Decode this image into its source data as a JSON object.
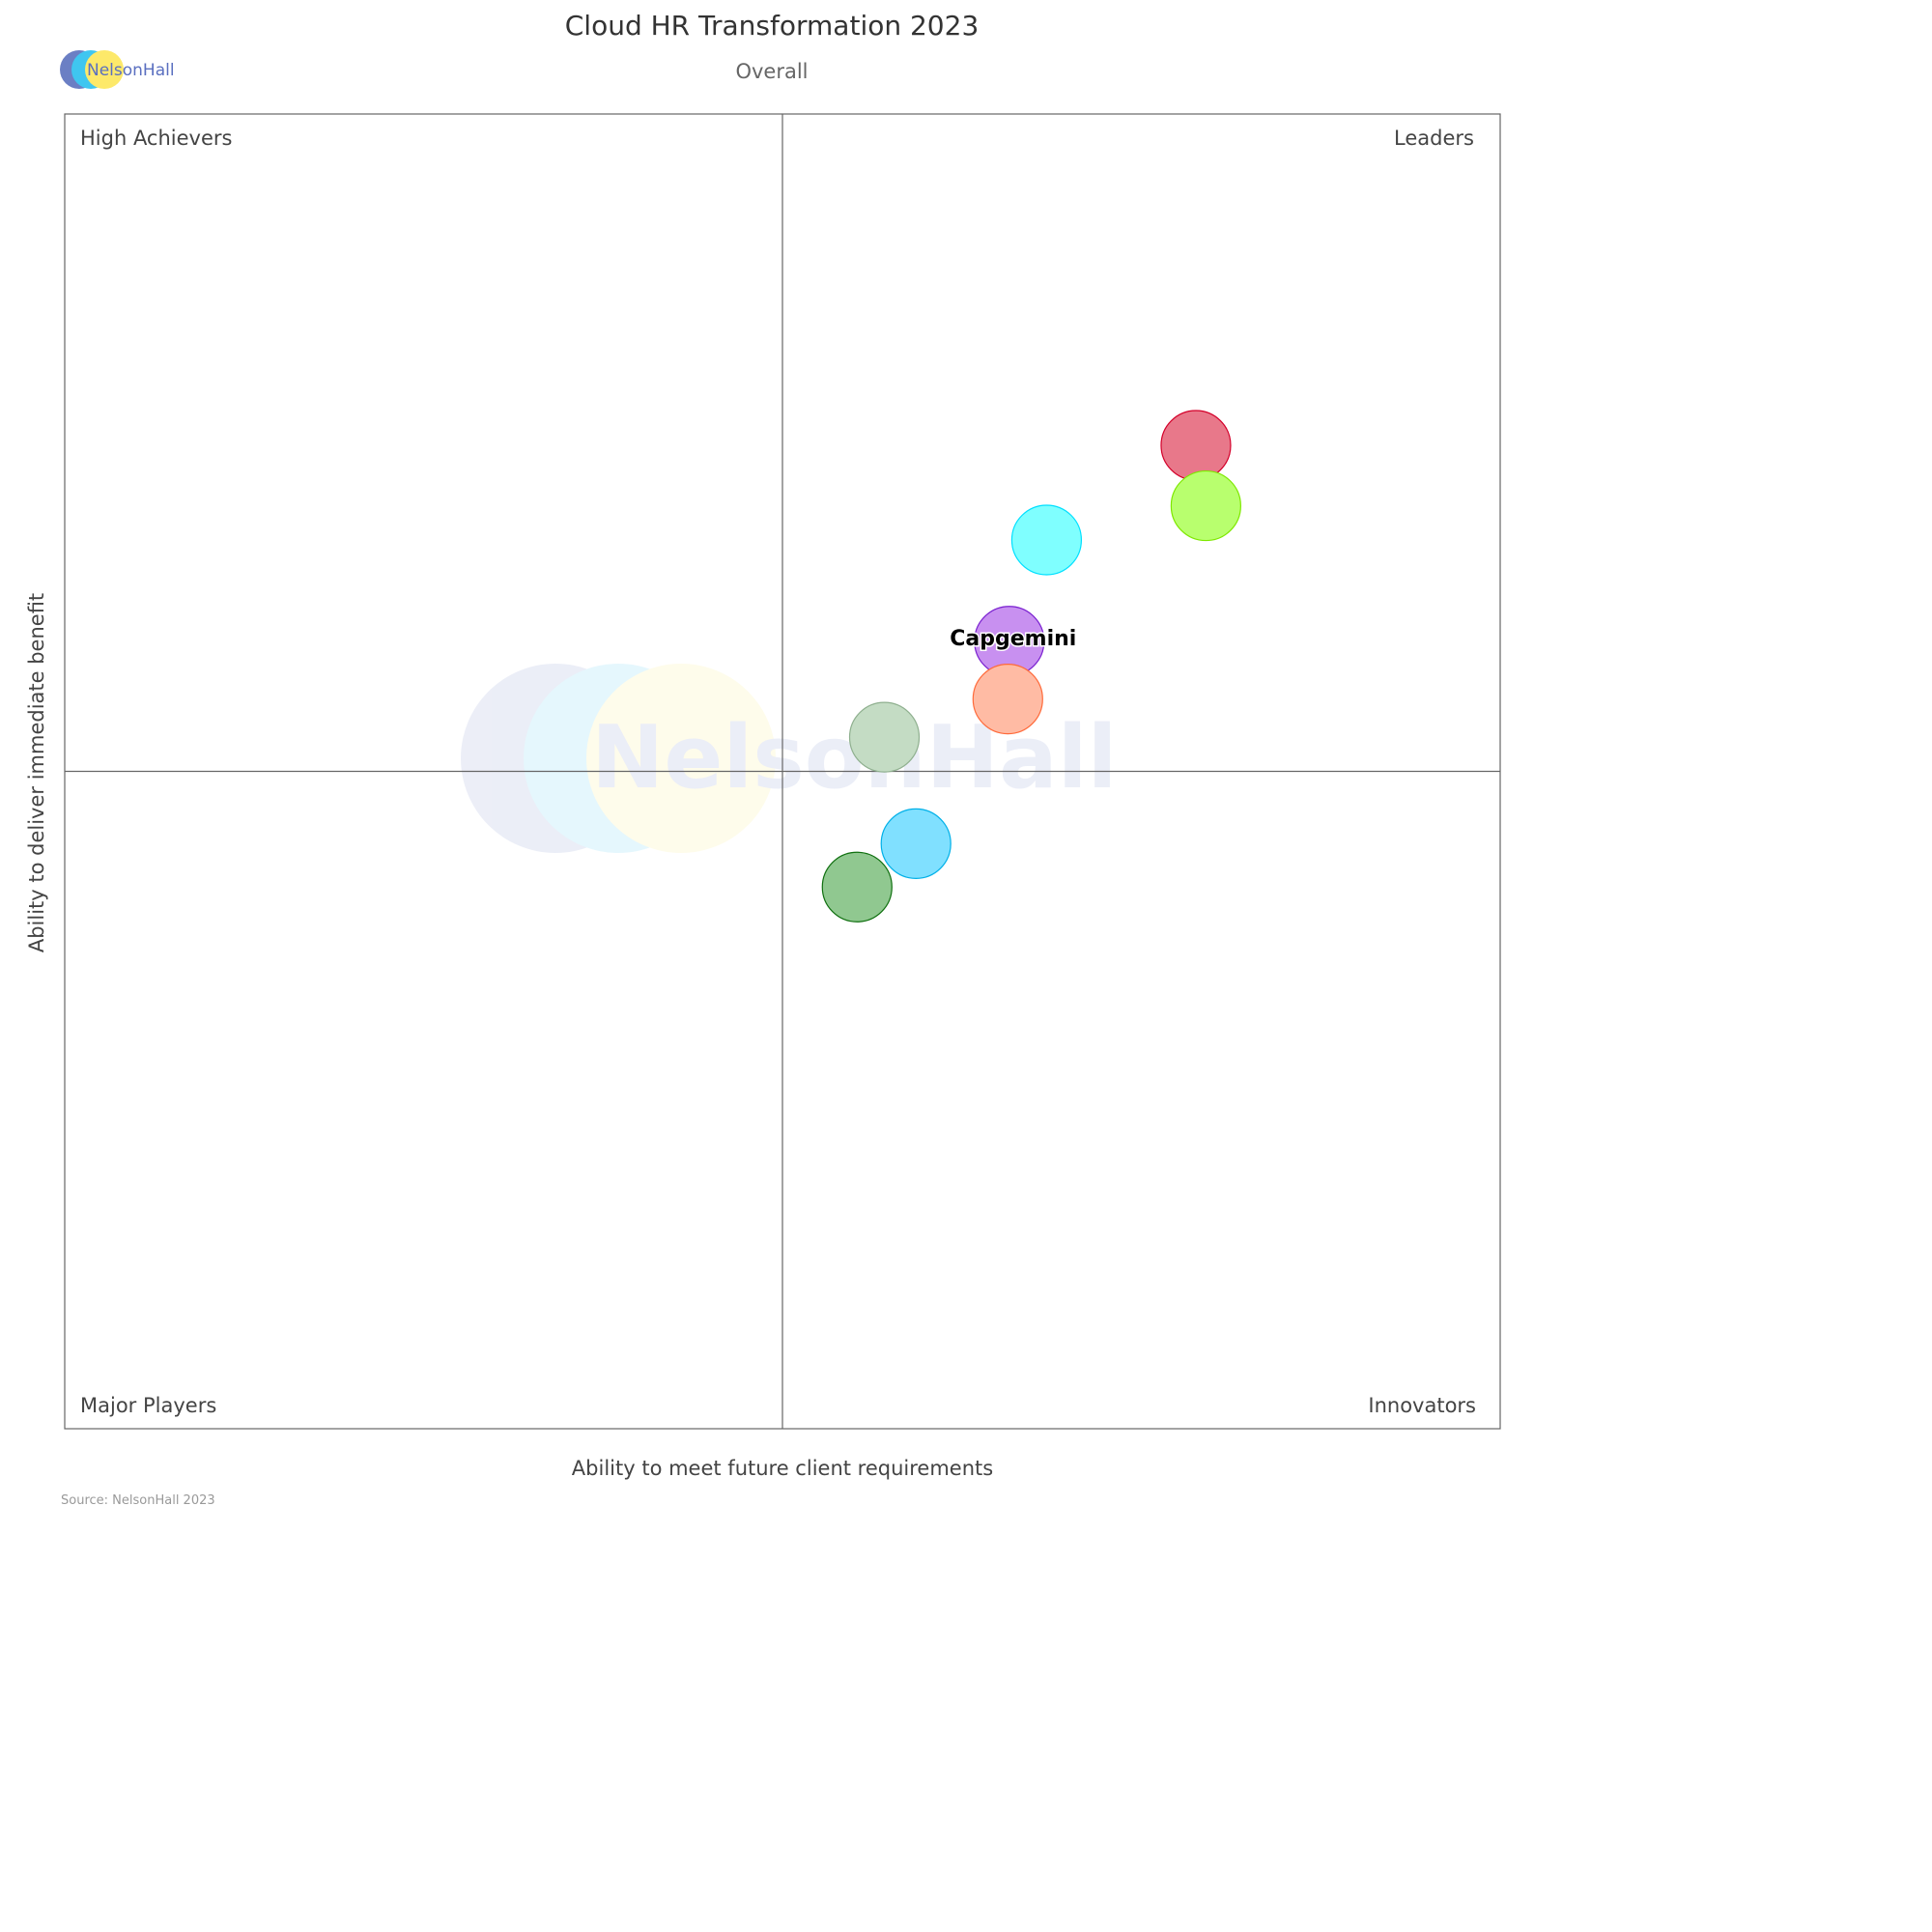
{
  "chart_data": {
    "type": "scatter",
    "title": "Cloud HR Transformation 2023",
    "subtitle": "Overall",
    "xlabel": "Ability to meet future client requirements",
    "ylabel": "Ability to deliver immediate benefit",
    "xlim": [
      0,
      100
    ],
    "ylim": [
      0,
      100
    ],
    "grid": false,
    "quadrant_dividers": {
      "x": 50,
      "y": 50
    },
    "quadrants": {
      "top_left": "High Achievers",
      "top_right": "Leaders",
      "bottom_left": "Major Players",
      "bottom_right": "Innovators"
    },
    "points": [
      {
        "x": 78.8,
        "y": 74.8,
        "fill": "#e8788a",
        "stroke": "#d4002a"
      },
      {
        "x": 79.5,
        "y": 70.2,
        "fill": "#b8ff6e",
        "stroke": "#7ee800"
      },
      {
        "x": 68.4,
        "y": 67.6,
        "fill": "#7fffff",
        "stroke": "#00e0ff"
      },
      {
        "x": 65.8,
        "y": 59.9,
        "fill": "#c890f0",
        "stroke": "#7a20d0",
        "label": "Capgemini"
      },
      {
        "x": 65.7,
        "y": 55.5,
        "fill": "#ffbba4",
        "stroke": "#ff6a3a"
      },
      {
        "x": 57.1,
        "y": 52.6,
        "fill": "#c4dcc4",
        "stroke": "#8fb08f"
      },
      {
        "x": 59.3,
        "y": 44.5,
        "fill": "#80e0ff",
        "stroke": "#00b0e8"
      },
      {
        "x": 55.2,
        "y": 41.2,
        "fill": "#90c890",
        "stroke": "#107010"
      }
    ]
  },
  "logo": {
    "text": "NelsonHall",
    "colors": [
      "#6b7fc4",
      "#3fc6f0",
      "#fde96a"
    ]
  },
  "watermark": {
    "text": "NelsonHall"
  },
  "source": "Source: NelsonHall 2023"
}
